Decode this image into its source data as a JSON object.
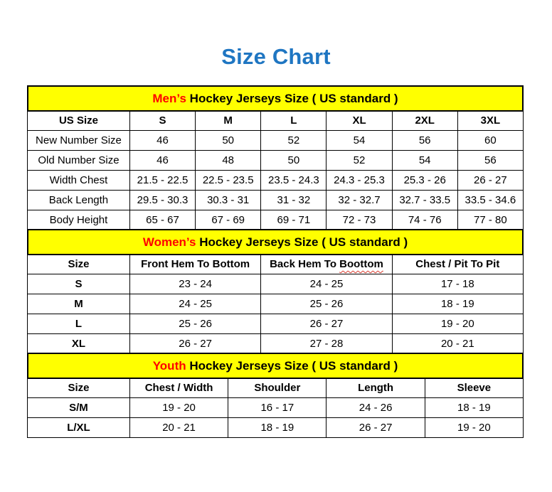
{
  "page": {
    "title": "Size Chart"
  },
  "colors": {
    "title_blue": "#1F76C2",
    "section_name_red": "#FF0000",
    "band_yellow": "#FFFF00",
    "border_black": "#000000",
    "squiggle_red": "#D83A2E"
  },
  "chart_data": [
    {
      "type": "table",
      "title": "Men’s Hockey Jerseys Size ( US standard )",
      "title_red": "Men’s",
      "title_rest": "Hockey Jerseys Size ( US standard )",
      "columns": [
        "US Size",
        "S",
        "M",
        "L",
        "XL",
        "2XL",
        "3XL"
      ],
      "rows": [
        [
          "New Number Size",
          "46",
          "50",
          "52",
          "54",
          "56",
          "60"
        ],
        [
          "Old Number Size",
          "46",
          "48",
          "50",
          "52",
          "54",
          "56"
        ],
        [
          "Width Chest",
          "21.5 - 22.5",
          "22.5 - 23.5",
          "23.5 - 24.3",
          "24.3 - 25.3",
          "25.3 - 26",
          "26 - 27"
        ],
        [
          "Back Length",
          "29.5 - 30.3",
          "30.3 - 31",
          "31 - 32",
          "32 - 32.7",
          "32.7 - 33.5",
          "33.5 - 34.6"
        ],
        [
          "Body Height",
          "65 - 67",
          "67 - 69",
          "69 - 71",
          "72 - 73",
          "74 - 76",
          "77 - 80"
        ]
      ]
    },
    {
      "type": "table",
      "title": "Women’s Hockey Jerseys Size ( US standard )",
      "title_red": "Women’s",
      "title_rest": "Hockey Jerseys Size ( US standard )",
      "columns": [
        "Size",
        "Front Hem To Bottom",
        "Back Hem To Boottom",
        "Chest / Pit To Pit"
      ],
      "back_hem_split": {
        "prefix": "Back Hem To",
        "misspelled_word": "Boottom"
      },
      "rows": [
        [
          "S",
          "23 - 24",
          "24 - 25",
          "17 - 18"
        ],
        [
          "M",
          "24 - 25",
          "25 - 26",
          "18 - 19"
        ],
        [
          "L",
          "25 - 26",
          "26 - 27",
          "19 - 20"
        ],
        [
          "XL",
          "26 - 27",
          "27 - 28",
          "20 - 21"
        ]
      ]
    },
    {
      "type": "table",
      "title": "Youth Hockey Jerseys Size ( US standard )",
      "title_red": "Youth",
      "title_rest": "Hockey Jerseys Size ( US standard )",
      "columns": [
        "Size",
        "Chest / Width",
        "Shoulder",
        "Length",
        "Sleeve"
      ],
      "rows": [
        [
          "S/M",
          "19 - 20",
          "16 - 17",
          "24 - 26",
          "18 - 19"
        ],
        [
          "L/XL",
          "20 - 21",
          "18 - 19",
          "26 - 27",
          "19 - 20"
        ]
      ]
    }
  ]
}
